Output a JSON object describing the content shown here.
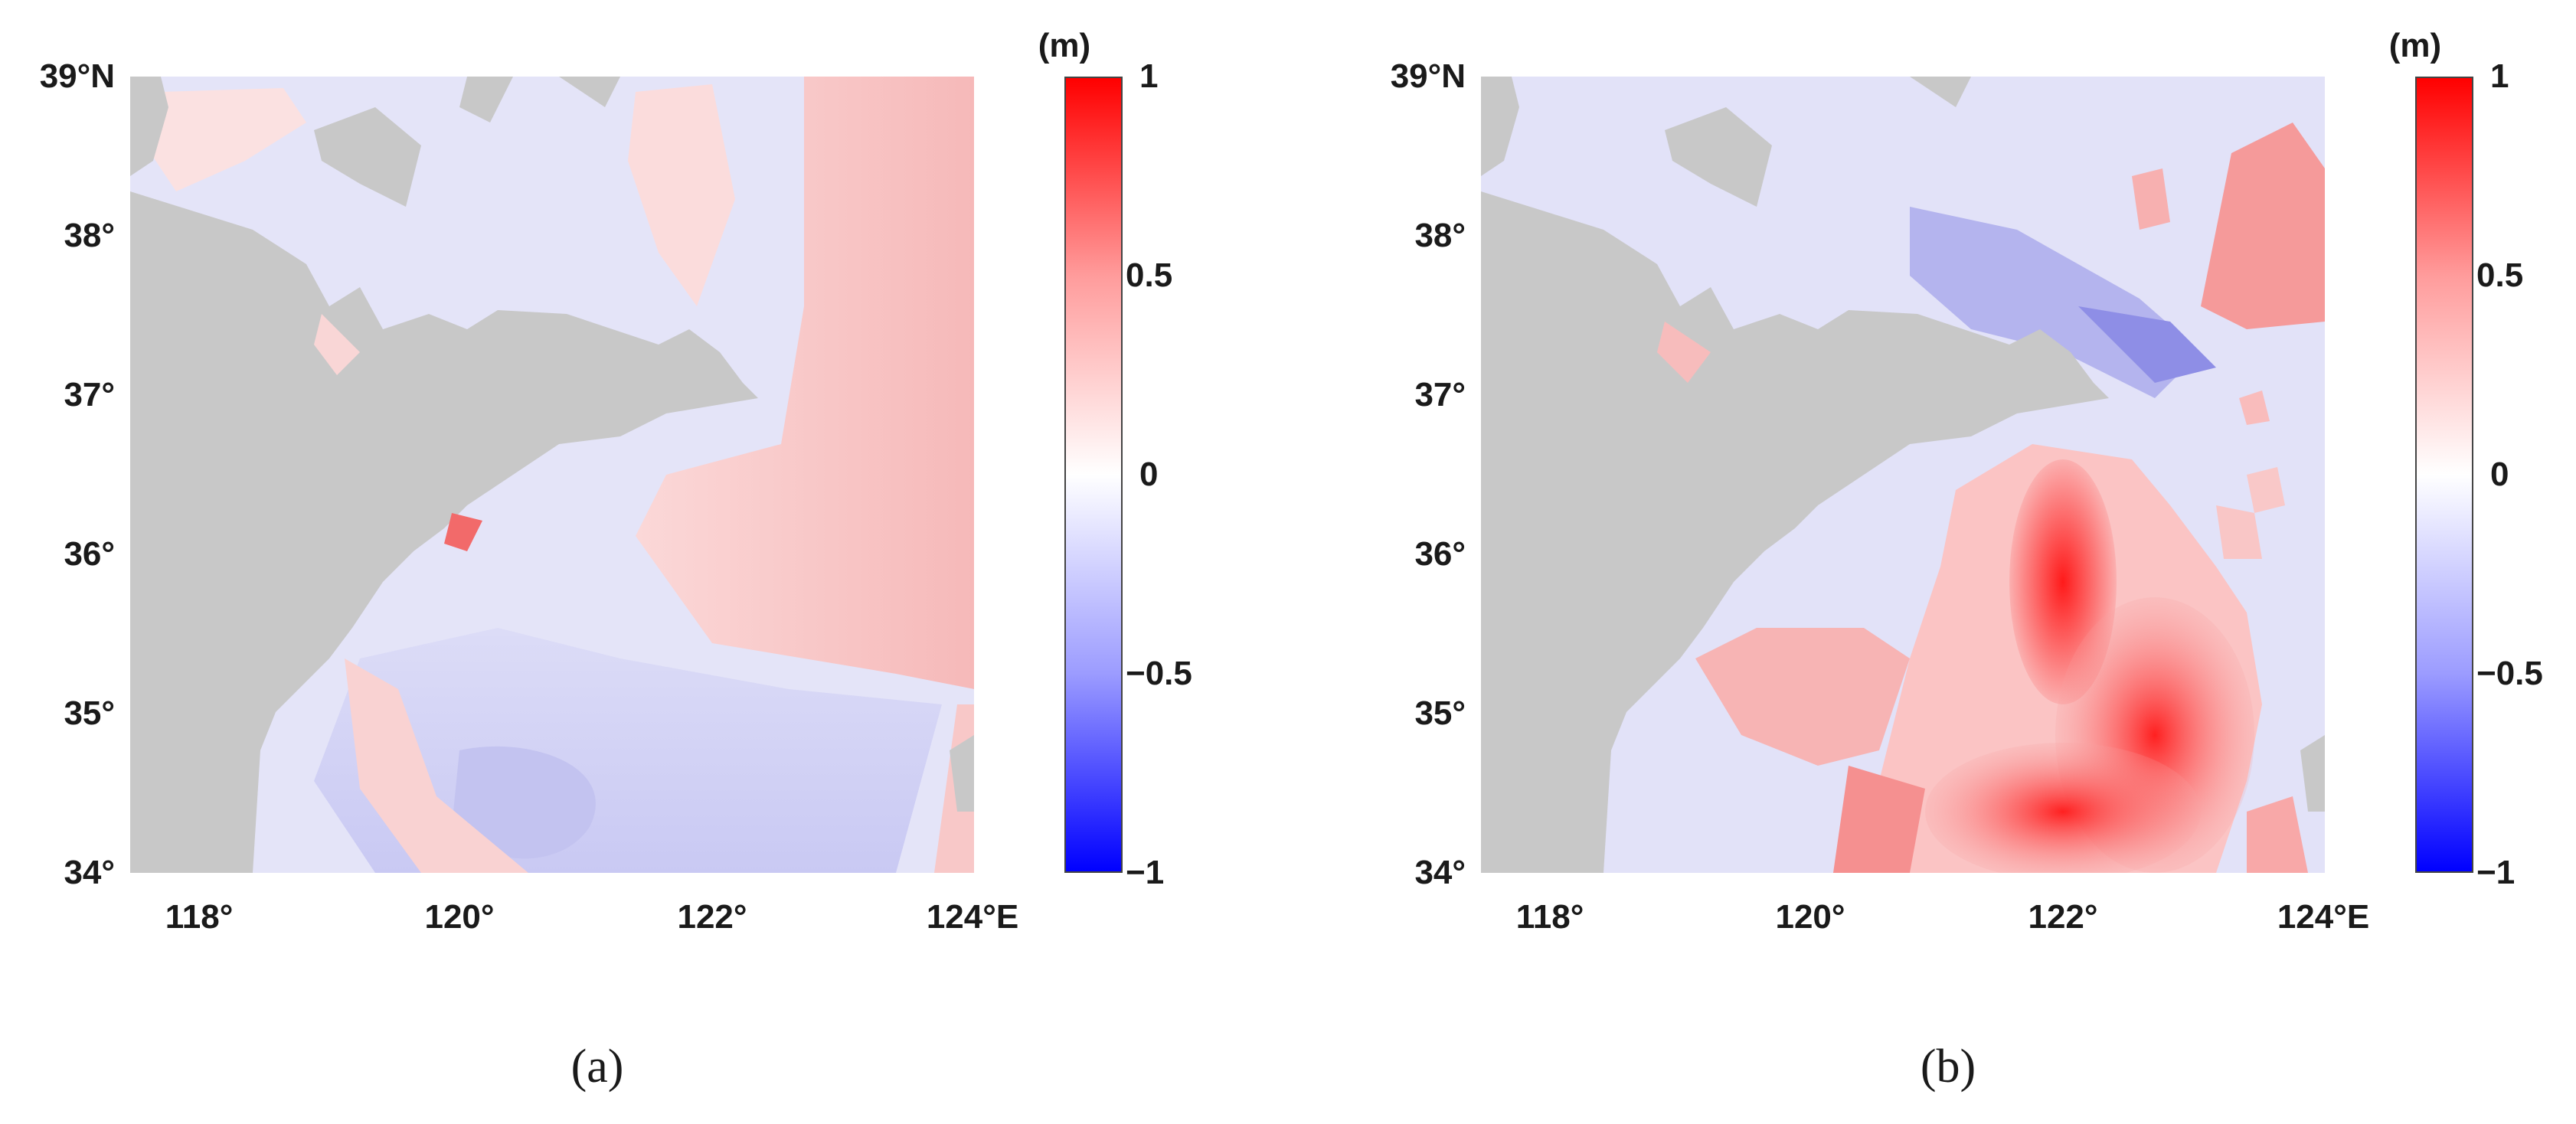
{
  "panels": [
    {
      "caption": "(a)",
      "lat_ticks": [
        "39°N",
        "38°",
        "37°",
        "36°",
        "35°",
        "34°"
      ],
      "lon_ticks": [
        "118°",
        "120°",
        "122°",
        "124°E"
      ],
      "colorbar": {
        "unit": "(m)",
        "ticks": [
          "1",
          "0.5",
          "0",
          "−0.5",
          "−1"
        ]
      }
    },
    {
      "caption": "(b)",
      "lat_ticks": [
        "39°N",
        "38°",
        "37°",
        "36°",
        "35°",
        "34°"
      ],
      "lon_ticks": [
        "118°",
        "120°",
        "122°",
        "124°E"
      ],
      "colorbar": {
        "unit": "(m)",
        "ticks": [
          "1",
          "0.5",
          "0",
          "−0.5",
          "−1"
        ]
      }
    }
  ],
  "colors": {
    "land": "#c8c8c8",
    "positive": "#ff0000",
    "negative": "#0000ff",
    "zero": "#ffffff"
  }
}
